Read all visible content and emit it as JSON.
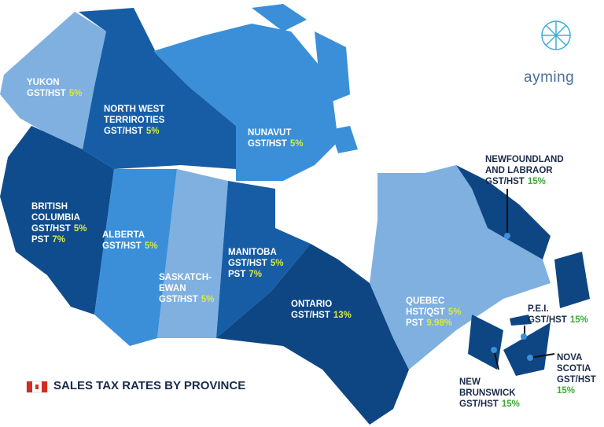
{
  "logo": "ayming",
  "title": "SALES TAX RATES BY PROVINCE",
  "regions": [
    {
      "name": [
        "YUKON"
      ],
      "taxes": [
        {
          "label": "GST/HST",
          "rate": "5%"
        }
      ]
    },
    {
      "name": [
        "NORTH WEST",
        "TERRIROTIES"
      ],
      "taxes": [
        {
          "label": "GST/HST",
          "rate": "5%"
        }
      ]
    },
    {
      "name": [
        "NUNAVUT"
      ],
      "taxes": [
        {
          "label": "GST/HST",
          "rate": "5%"
        }
      ]
    },
    {
      "name": [
        "BRITISH",
        "COLUMBIA"
      ],
      "taxes": [
        {
          "label": "GST/HST",
          "rate": "5%"
        },
        {
          "label": "PST",
          "rate": "7%"
        }
      ]
    },
    {
      "name": [
        "ALBERTA"
      ],
      "taxes": [
        {
          "label": "GST/HST",
          "rate": "5%"
        }
      ]
    },
    {
      "name": [
        "SASKATCH-",
        "EWAN"
      ],
      "taxes": [
        {
          "label": "GST/HST",
          "rate": "5%"
        }
      ]
    },
    {
      "name": [
        "MANITOBA"
      ],
      "taxes": [
        {
          "label": "GST/HST",
          "rate": "5%"
        },
        {
          "label": "PST",
          "rate": "7%"
        }
      ]
    },
    {
      "name": [
        "ONTARIO"
      ],
      "taxes": [
        {
          "label": "GST/HST",
          "rate": "13%"
        }
      ]
    },
    {
      "name": [
        "QUEBEC"
      ],
      "taxes": [
        {
          "label": "HST/QST",
          "rate": "5%"
        },
        {
          "label": "PST",
          "rate": "9.98%"
        }
      ]
    },
    {
      "name": [
        "NEWFOUNDLAND",
        "AND LABRAOR"
      ],
      "taxes": [
        {
          "label": "GST/HST",
          "rate": "15%"
        }
      ]
    },
    {
      "name": [
        "P.E.I."
      ],
      "taxes": [
        {
          "label": "GST/HST",
          "rate": "15%"
        }
      ]
    },
    {
      "name": [
        "NOVA",
        "SCOTIA"
      ],
      "taxes": [
        {
          "label": "GST/HST",
          "rate": "15%"
        }
      ]
    },
    {
      "name": [
        "NEW",
        "BRUNSWICK"
      ],
      "taxes": [
        {
          "label": "GST/HST",
          "rate": "15%"
        }
      ]
    }
  ]
}
